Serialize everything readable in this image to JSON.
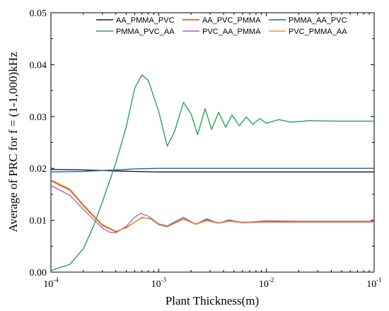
{
  "chart_data": {
    "type": "line",
    "title": "",
    "xlabel": "Plant Thickness(m)",
    "ylabel": "Average of PRC for f = (1-1,000)kHz",
    "xscale": "log",
    "xlim": [
      0.0001,
      0.1
    ],
    "ylim": [
      0,
      0.05
    ],
    "yticks": [
      "0.00",
      "0.01",
      "0.02",
      "0.03",
      "0.04",
      "0.05"
    ],
    "xticks": [
      {
        "value": 0.0001,
        "base": "10",
        "exp": "-4"
      },
      {
        "value": 0.001,
        "base": "10",
        "exp": "-3"
      },
      {
        "value": 0.01,
        "base": "10",
        "exp": "-2"
      },
      {
        "value": 0.1,
        "base": "10",
        "exp": "-1"
      }
    ],
    "grid": false,
    "legend_position": "top-right",
    "series": [
      {
        "name": "AA_PMMA_PVC",
        "color": "#1a1a1a",
        "points": [
          [
            0.0001,
            0.0198
          ],
          [
            0.0002,
            0.0197
          ],
          [
            0.0003,
            0.0196
          ],
          [
            0.0004,
            0.0195
          ],
          [
            0.0006,
            0.0194
          ],
          [
            0.001,
            0.0193
          ],
          [
            0.002,
            0.0193
          ],
          [
            0.005,
            0.0193
          ],
          [
            0.01,
            0.0193
          ],
          [
            0.1,
            0.0193
          ]
        ]
      },
      {
        "name": "AA_PVC_PMMA",
        "color": "#e8382e",
        "points": [
          [
            0.0001,
            0.0176
          ],
          [
            0.00015,
            0.0158
          ],
          [
            0.0002,
            0.0128
          ],
          [
            0.0003,
            0.009
          ],
          [
            0.0004,
            0.0078
          ],
          [
            0.0005,
            0.0086
          ],
          [
            0.0007,
            0.0105
          ],
          [
            0.00085,
            0.0103
          ],
          [
            0.001,
            0.0092
          ],
          [
            0.0012,
            0.0088
          ],
          [
            0.0017,
            0.0103
          ],
          [
            0.0022,
            0.0093
          ],
          [
            0.0028,
            0.0101
          ],
          [
            0.0036,
            0.0095
          ],
          [
            0.0045,
            0.0099
          ],
          [
            0.006,
            0.0096
          ],
          [
            0.01,
            0.0098
          ],
          [
            0.02,
            0.0097
          ],
          [
            0.1,
            0.0097
          ]
        ]
      },
      {
        "name": "PMMA_AA_PVC",
        "color": "#1f5fbf",
        "points": [
          [
            0.0001,
            0.0193
          ],
          [
            0.0002,
            0.0194
          ],
          [
            0.0003,
            0.0196
          ],
          [
            0.0004,
            0.0197
          ],
          [
            0.0006,
            0.0199
          ],
          [
            0.001,
            0.02
          ],
          [
            0.002,
            0.02
          ],
          [
            0.005,
            0.02
          ],
          [
            0.01,
            0.02
          ],
          [
            0.1,
            0.02
          ]
        ]
      },
      {
        "name": "PMMA_PVC_AA",
        "color": "#27a35a",
        "points": [
          [
            0.0001,
            0.0003
          ],
          [
            0.00015,
            0.0015
          ],
          [
            0.0002,
            0.0045
          ],
          [
            0.00025,
            0.009
          ],
          [
            0.0003,
            0.0135
          ],
          [
            0.0004,
            0.021
          ],
          [
            0.0005,
            0.028
          ],
          [
            0.0006,
            0.0355
          ],
          [
            0.0007,
            0.038
          ],
          [
            0.0008,
            0.037
          ],
          [
            0.001,
            0.031
          ],
          [
            0.0012,
            0.0243
          ],
          [
            0.0014,
            0.027
          ],
          [
            0.0017,
            0.0327
          ],
          [
            0.002,
            0.0305
          ],
          [
            0.0023,
            0.0265
          ],
          [
            0.0027,
            0.0315
          ],
          [
            0.0031,
            0.0275
          ],
          [
            0.0036,
            0.0308
          ],
          [
            0.0042,
            0.0279
          ],
          [
            0.0048,
            0.0303
          ],
          [
            0.0056,
            0.0282
          ],
          [
            0.0065,
            0.0299
          ],
          [
            0.0075,
            0.0285
          ],
          [
            0.0087,
            0.0296
          ],
          [
            0.01,
            0.0287
          ],
          [
            0.013,
            0.0294
          ],
          [
            0.017,
            0.0289
          ],
          [
            0.025,
            0.0292
          ],
          [
            0.05,
            0.0291
          ],
          [
            0.1,
            0.0291
          ]
        ]
      },
      {
        "name": "PVC_AA_PMMA",
        "color": "#9b6bc9",
        "points": [
          [
            0.0001,
            0.0167
          ],
          [
            0.00015,
            0.0148
          ],
          [
            0.0002,
            0.0121
          ],
          [
            0.0003,
            0.0085
          ],
          [
            0.00035,
            0.0077
          ],
          [
            0.0004,
            0.0076
          ],
          [
            0.0005,
            0.0088
          ],
          [
            0.0006,
            0.0106
          ],
          [
            0.00068,
            0.0113
          ],
          [
            0.0008,
            0.0108
          ],
          [
            0.001,
            0.0093
          ],
          [
            0.0012,
            0.0089
          ],
          [
            0.0017,
            0.0106
          ],
          [
            0.0022,
            0.0092
          ],
          [
            0.0028,
            0.0103
          ],
          [
            0.0036,
            0.0094
          ],
          [
            0.0045,
            0.0101
          ],
          [
            0.006,
            0.0095
          ],
          [
            0.01,
            0.0099
          ],
          [
            0.02,
            0.0098
          ],
          [
            0.1,
            0.0098
          ]
        ]
      },
      {
        "name": "PVC_PMMA_AA",
        "color": "#e0a020",
        "points": [
          [
            0.0001,
            0.0178
          ],
          [
            0.00015,
            0.016
          ],
          [
            0.0002,
            0.013
          ],
          [
            0.0003,
            0.0092
          ],
          [
            0.0004,
            0.0079
          ],
          [
            0.0005,
            0.0085
          ],
          [
            0.0007,
            0.0106
          ],
          [
            0.00085,
            0.0102
          ],
          [
            0.001,
            0.0091
          ],
          [
            0.0012,
            0.0087
          ],
          [
            0.0017,
            0.0102
          ],
          [
            0.0022,
            0.0092
          ],
          [
            0.0028,
            0.0099
          ],
          [
            0.0036,
            0.0094
          ],
          [
            0.0045,
            0.0098
          ],
          [
            0.006,
            0.0095
          ],
          [
            0.01,
            0.0096
          ],
          [
            0.02,
            0.0096
          ],
          [
            0.1,
            0.0096
          ]
        ]
      }
    ]
  }
}
